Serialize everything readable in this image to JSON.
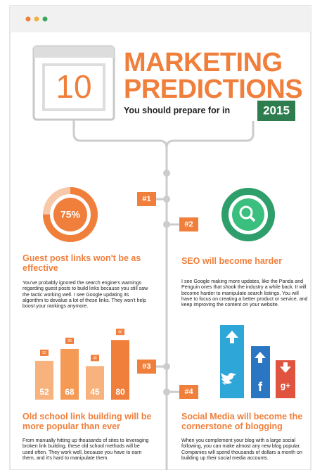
{
  "header": {
    "number": "10",
    "title_lines": [
      "MARKETING",
      "PREDICTIONS"
    ],
    "subtitle": "You should prepare for in",
    "year": "2015"
  },
  "steps": [
    "#1",
    "#2",
    "#3",
    "#4"
  ],
  "donut": {
    "value": 75,
    "label": "75%"
  },
  "bars": {
    "values": [
      52,
      68,
      45,
      80
    ]
  },
  "social_icons": [
    "f",
    "g+"
  ],
  "sections": [
    {
      "title": "Guest post links won't be as effective",
      "body": "You've probably ignored the search engine's warnings regarding guest posts to build links because you still saw the tactic working well. I see Google updating its algorithm to devalue a lot of these links. They won't help boost your rankings anymore."
    },
    {
      "title": "SEO will become harder",
      "body": "I see Google making more updates, like the Panda and Penguin ones that shook the industry a while back. It will become harder to manipulate search listings. You will have to focus on creating a better product or service, and keep improving the content on your website."
    },
    {
      "title": "Old school link building will be more popular than ever",
      "body": "From manually hitting up thousands of sites to leveraging broken link building, these old school methods will be used often. They work well, because you have to earn them, and it's hard to manipulate them."
    },
    {
      "title": "Social Media will become the cornerstone of blogging",
      "body": "When you complement your blog with a large social following, you can make almost any new blog popular. Companies will spend thousands of dollars a month on building up their social media accounts."
    }
  ]
}
